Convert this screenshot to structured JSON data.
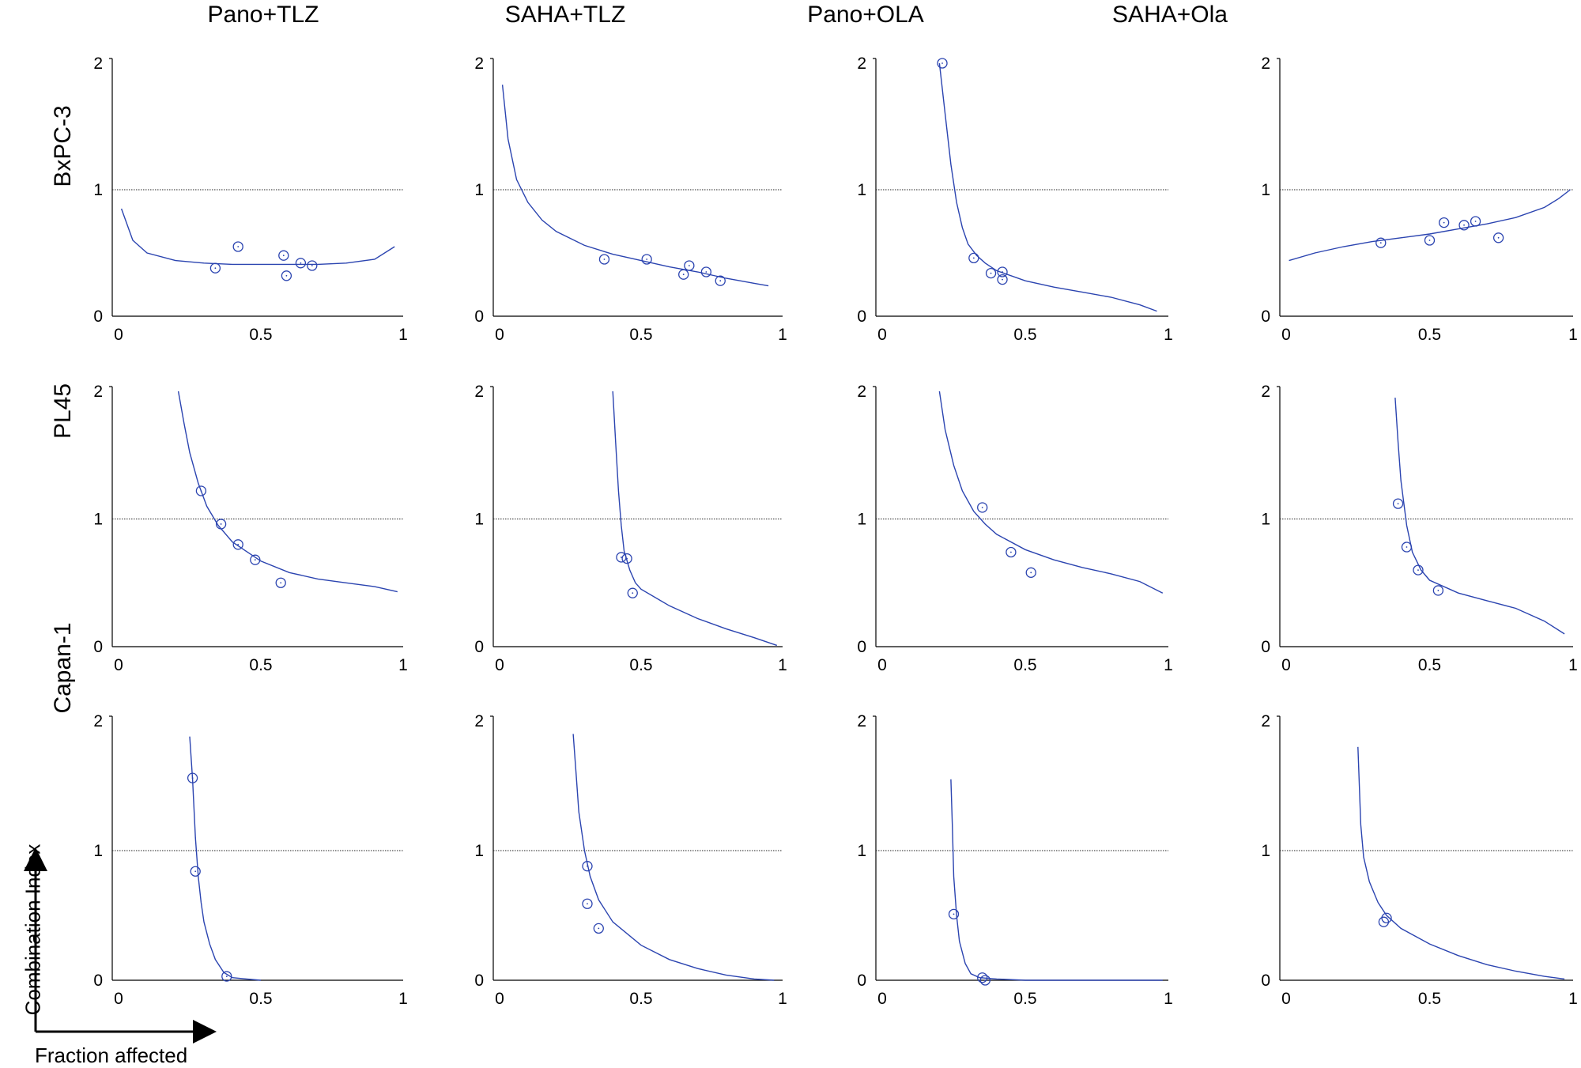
{
  "figure": {
    "column_titles": [
      "Pano+TLZ",
      "SAHA+TLZ",
      "Pano+OLA",
      "SAHA+Ola"
    ],
    "row_labels": [
      "BxPC-3",
      "PL45",
      "Capan-1"
    ],
    "y_axis_key": "Combination Index",
    "x_axis_key": "Fraction affected"
  },
  "chart_data": [
    {
      "type": "scatter",
      "row": "BxPC-3",
      "column": "Pano+TLZ",
      "xlim": [
        0,
        1
      ],
      "ylim": [
        0,
        2
      ],
      "x_ticks": [
        "0",
        "0.5",
        "1"
      ],
      "y_ticks": [
        "0",
        "1",
        "2"
      ],
      "reference_line_y": 1,
      "points": [
        [
          0.34,
          0.38
        ],
        [
          0.42,
          0.55
        ],
        [
          0.58,
          0.48
        ],
        [
          0.59,
          0.32
        ],
        [
          0.64,
          0.42
        ],
        [
          0.68,
          0.4
        ]
      ],
      "curve": [
        [
          0.01,
          0.85
        ],
        [
          0.05,
          0.6
        ],
        [
          0.1,
          0.5
        ],
        [
          0.2,
          0.44
        ],
        [
          0.3,
          0.42
        ],
        [
          0.4,
          0.41
        ],
        [
          0.5,
          0.41
        ],
        [
          0.6,
          0.41
        ],
        [
          0.7,
          0.41
        ],
        [
          0.8,
          0.42
        ],
        [
          0.9,
          0.45
        ],
        [
          0.97,
          0.55
        ]
      ]
    },
    {
      "type": "scatter",
      "row": "BxPC-3",
      "column": "SAHA+TLZ",
      "xlim": [
        0,
        1
      ],
      "ylim": [
        0,
        2
      ],
      "x_ticks": [
        "0",
        "0.5",
        "1"
      ],
      "y_ticks": [
        "0",
        "1",
        "2"
      ],
      "reference_line_y": 1,
      "points": [
        [
          0.37,
          0.45
        ],
        [
          0.52,
          0.45
        ],
        [
          0.65,
          0.33
        ],
        [
          0.67,
          0.4
        ],
        [
          0.73,
          0.35
        ],
        [
          0.78,
          0.28
        ]
      ],
      "curve": [
        [
          0.01,
          1.83
        ],
        [
          0.03,
          1.4
        ],
        [
          0.06,
          1.08
        ],
        [
          0.1,
          0.9
        ],
        [
          0.15,
          0.76
        ],
        [
          0.2,
          0.67
        ],
        [
          0.3,
          0.56
        ],
        [
          0.4,
          0.49
        ],
        [
          0.5,
          0.44
        ],
        [
          0.6,
          0.39
        ],
        [
          0.7,
          0.35
        ],
        [
          0.8,
          0.3
        ],
        [
          0.9,
          0.26
        ],
        [
          0.95,
          0.24
        ]
      ]
    },
    {
      "type": "scatter",
      "row": "BxPC-3",
      "column": "Pano+OLA",
      "xlim": [
        0,
        1
      ],
      "ylim": [
        0,
        2
      ],
      "x_ticks": [
        "0",
        "0.5",
        "1"
      ],
      "y_ticks": [
        "0",
        "1",
        "2"
      ],
      "reference_line_y": 1,
      "points": [
        [
          0.21,
          2.0
        ],
        [
          0.32,
          0.46
        ],
        [
          0.38,
          0.34
        ],
        [
          0.42,
          0.29
        ],
        [
          0.42,
          0.35
        ]
      ],
      "curve": [
        [
          0.2,
          2.0
        ],
        [
          0.22,
          1.6
        ],
        [
          0.24,
          1.2
        ],
        [
          0.26,
          0.9
        ],
        [
          0.28,
          0.7
        ],
        [
          0.3,
          0.57
        ],
        [
          0.33,
          0.48
        ],
        [
          0.36,
          0.42
        ],
        [
          0.4,
          0.36
        ],
        [
          0.5,
          0.28
        ],
        [
          0.6,
          0.23
        ],
        [
          0.7,
          0.19
        ],
        [
          0.8,
          0.15
        ],
        [
          0.9,
          0.09
        ],
        [
          0.96,
          0.04
        ]
      ]
    },
    {
      "type": "scatter",
      "row": "BxPC-3",
      "column": "SAHA+Ola",
      "xlim": [
        0,
        1
      ],
      "ylim": [
        0,
        2
      ],
      "x_ticks": [
        "0",
        "0.5",
        "1"
      ],
      "y_ticks": [
        "0",
        "1",
        "2"
      ],
      "reference_line_y": 1,
      "points": [
        [
          0.33,
          0.58
        ],
        [
          0.5,
          0.6
        ],
        [
          0.55,
          0.74
        ],
        [
          0.62,
          0.72
        ],
        [
          0.66,
          0.75
        ],
        [
          0.74,
          0.62
        ]
      ],
      "curve": [
        [
          0.01,
          0.44
        ],
        [
          0.1,
          0.5
        ],
        [
          0.2,
          0.55
        ],
        [
          0.3,
          0.59
        ],
        [
          0.4,
          0.62
        ],
        [
          0.5,
          0.65
        ],
        [
          0.6,
          0.69
        ],
        [
          0.7,
          0.73
        ],
        [
          0.8,
          0.78
        ],
        [
          0.9,
          0.86
        ],
        [
          0.95,
          0.93
        ],
        [
          0.99,
          1.0
        ]
      ]
    },
    {
      "type": "scatter",
      "row": "PL45",
      "column": "Pano+TLZ",
      "xlim": [
        0,
        1
      ],
      "ylim": [
        0,
        2
      ],
      "x_ticks": [
        "0",
        "0.5",
        "1"
      ],
      "y_ticks": [
        "0",
        "1",
        "2"
      ],
      "reference_line_y": 1,
      "points": [
        [
          0.29,
          1.22
        ],
        [
          0.36,
          0.96
        ],
        [
          0.42,
          0.8
        ],
        [
          0.48,
          0.68
        ],
        [
          0.57,
          0.5
        ]
      ],
      "curve": [
        [
          0.21,
          2.0
        ],
        [
          0.23,
          1.75
        ],
        [
          0.25,
          1.52
        ],
        [
          0.28,
          1.28
        ],
        [
          0.31,
          1.1
        ],
        [
          0.35,
          0.95
        ],
        [
          0.4,
          0.82
        ],
        [
          0.5,
          0.67
        ],
        [
          0.6,
          0.58
        ],
        [
          0.7,
          0.53
        ],
        [
          0.8,
          0.5
        ],
        [
          0.9,
          0.47
        ],
        [
          0.98,
          0.43
        ]
      ]
    },
    {
      "type": "scatter",
      "row": "PL45",
      "column": "SAHA+TLZ",
      "xlim": [
        0,
        1
      ],
      "ylim": [
        0,
        2
      ],
      "x_ticks": [
        "0",
        "0.5",
        "1"
      ],
      "y_ticks": [
        "0",
        "1",
        "2"
      ],
      "reference_line_y": 1,
      "points": [
        [
          0.43,
          0.7
        ],
        [
          0.45,
          0.69
        ],
        [
          0.47,
          0.42
        ]
      ],
      "curve": [
        [
          0.4,
          2.0
        ],
        [
          0.41,
          1.6
        ],
        [
          0.42,
          1.22
        ],
        [
          0.43,
          0.95
        ],
        [
          0.44,
          0.75
        ],
        [
          0.46,
          0.6
        ],
        [
          0.48,
          0.5
        ],
        [
          0.5,
          0.45
        ],
        [
          0.6,
          0.32
        ],
        [
          0.7,
          0.22
        ],
        [
          0.8,
          0.14
        ],
        [
          0.9,
          0.07
        ],
        [
          0.98,
          0.01
        ]
      ]
    },
    {
      "type": "scatter",
      "row": "PL45",
      "column": "Pano+OLA",
      "xlim": [
        0,
        1
      ],
      "ylim": [
        0,
        2
      ],
      "x_ticks": [
        "0",
        "0.5",
        "1"
      ],
      "y_ticks": [
        "0",
        "1",
        "2"
      ],
      "reference_line_y": 1,
      "points": [
        [
          0.35,
          1.09
        ],
        [
          0.45,
          0.74
        ],
        [
          0.52,
          0.58
        ]
      ],
      "curve": [
        [
          0.2,
          2.0
        ],
        [
          0.22,
          1.7
        ],
        [
          0.25,
          1.42
        ],
        [
          0.28,
          1.22
        ],
        [
          0.32,
          1.06
        ],
        [
          0.36,
          0.96
        ],
        [
          0.4,
          0.88
        ],
        [
          0.5,
          0.76
        ],
        [
          0.6,
          0.68
        ],
        [
          0.7,
          0.62
        ],
        [
          0.8,
          0.57
        ],
        [
          0.9,
          0.51
        ],
        [
          0.98,
          0.42
        ]
      ]
    },
    {
      "type": "scatter",
      "row": "PL45",
      "column": "SAHA+Ola",
      "xlim": [
        0,
        1
      ],
      "ylim": [
        0,
        2
      ],
      "x_ticks": [
        "0",
        "0.5",
        "1"
      ],
      "y_ticks": [
        "0",
        "1",
        "2"
      ],
      "reference_line_y": 1,
      "points": [
        [
          0.39,
          1.12
        ],
        [
          0.42,
          0.78
        ],
        [
          0.46,
          0.6
        ],
        [
          0.53,
          0.44
        ]
      ],
      "curve": [
        [
          0.38,
          1.95
        ],
        [
          0.39,
          1.6
        ],
        [
          0.4,
          1.3
        ],
        [
          0.42,
          0.95
        ],
        [
          0.44,
          0.74
        ],
        [
          0.47,
          0.6
        ],
        [
          0.5,
          0.52
        ],
        [
          0.6,
          0.42
        ],
        [
          0.7,
          0.36
        ],
        [
          0.8,
          0.3
        ],
        [
          0.9,
          0.2
        ],
        [
          0.97,
          0.1
        ]
      ]
    },
    {
      "type": "scatter",
      "row": "Capan-1",
      "column": "Pano+TLZ",
      "xlim": [
        0,
        1
      ],
      "ylim": [
        0,
        2
      ],
      "x_ticks": [
        "0",
        "0.5",
        "1"
      ],
      "y_ticks": [
        "0",
        "1",
        "2"
      ],
      "reference_line_y": 1,
      "points": [
        [
          0.26,
          1.56
        ],
        [
          0.27,
          0.84
        ],
        [
          0.38,
          0.03
        ]
      ],
      "curve": [
        [
          0.25,
          1.88
        ],
        [
          0.26,
          1.55
        ],
        [
          0.27,
          1.1
        ],
        [
          0.28,
          0.8
        ],
        [
          0.29,
          0.6
        ],
        [
          0.3,
          0.45
        ],
        [
          0.32,
          0.28
        ],
        [
          0.34,
          0.16
        ],
        [
          0.37,
          0.06
        ],
        [
          0.4,
          0.02
        ],
        [
          0.45,
          0.01
        ],
        [
          0.5,
          0.0
        ]
      ]
    },
    {
      "type": "scatter",
      "row": "Capan-1",
      "column": "SAHA+TLZ",
      "xlim": [
        0,
        1
      ],
      "ylim": [
        0,
        2
      ],
      "x_ticks": [
        "0",
        "0.5",
        "1"
      ],
      "y_ticks": [
        "0",
        "1",
        "2"
      ],
      "reference_line_y": 1,
      "points": [
        [
          0.31,
          0.88
        ],
        [
          0.31,
          0.59
        ],
        [
          0.35,
          0.4
        ]
      ],
      "curve": [
        [
          0.26,
          1.9
        ],
        [
          0.27,
          1.6
        ],
        [
          0.28,
          1.3
        ],
        [
          0.3,
          1.0
        ],
        [
          0.32,
          0.8
        ],
        [
          0.35,
          0.62
        ],
        [
          0.4,
          0.45
        ],
        [
          0.5,
          0.27
        ],
        [
          0.6,
          0.16
        ],
        [
          0.7,
          0.09
        ],
        [
          0.8,
          0.04
        ],
        [
          0.9,
          0.01
        ],
        [
          0.97,
          0.0
        ]
      ]
    },
    {
      "type": "scatter",
      "row": "Capan-1",
      "column": "Pano+OLA",
      "xlim": [
        0,
        1
      ],
      "ylim": [
        0,
        2
      ],
      "x_ticks": [
        "0",
        "0.5",
        "1"
      ],
      "y_ticks": [
        "0",
        "1",
        "2"
      ],
      "reference_line_y": 1,
      "points": [
        [
          0.25,
          0.51
        ],
        [
          0.35,
          0.02
        ],
        [
          0.36,
          0.0
        ]
      ],
      "curve": [
        [
          0.24,
          1.55
        ],
        [
          0.245,
          1.2
        ],
        [
          0.25,
          0.8
        ],
        [
          0.26,
          0.5
        ],
        [
          0.27,
          0.3
        ],
        [
          0.29,
          0.13
        ],
        [
          0.31,
          0.05
        ],
        [
          0.34,
          0.02
        ],
        [
          0.4,
          0.01
        ],
        [
          0.5,
          0.0
        ],
        [
          0.98,
          0.0
        ]
      ]
    },
    {
      "type": "scatter",
      "row": "Capan-1",
      "column": "SAHA+Ola",
      "xlim": [
        0,
        1
      ],
      "ylim": [
        0,
        2
      ],
      "x_ticks": [
        "0",
        "0.5",
        "1"
      ],
      "y_ticks": [
        "0",
        "1",
        "2"
      ],
      "reference_line_y": 1,
      "points": [
        [
          0.34,
          0.45
        ],
        [
          0.35,
          0.48
        ]
      ],
      "curve": [
        [
          0.25,
          1.8
        ],
        [
          0.255,
          1.5
        ],
        [
          0.26,
          1.2
        ],
        [
          0.27,
          0.95
        ],
        [
          0.29,
          0.76
        ],
        [
          0.32,
          0.6
        ],
        [
          0.35,
          0.5
        ],
        [
          0.4,
          0.4
        ],
        [
          0.5,
          0.28
        ],
        [
          0.6,
          0.19
        ],
        [
          0.7,
          0.12
        ],
        [
          0.8,
          0.07
        ],
        [
          0.9,
          0.03
        ],
        [
          0.97,
          0.01
        ]
      ]
    }
  ],
  "colors": {
    "curve": "#2b44b0",
    "marker": "#2b44b0",
    "axis": "#000000",
    "reference_line": "#222222"
  }
}
